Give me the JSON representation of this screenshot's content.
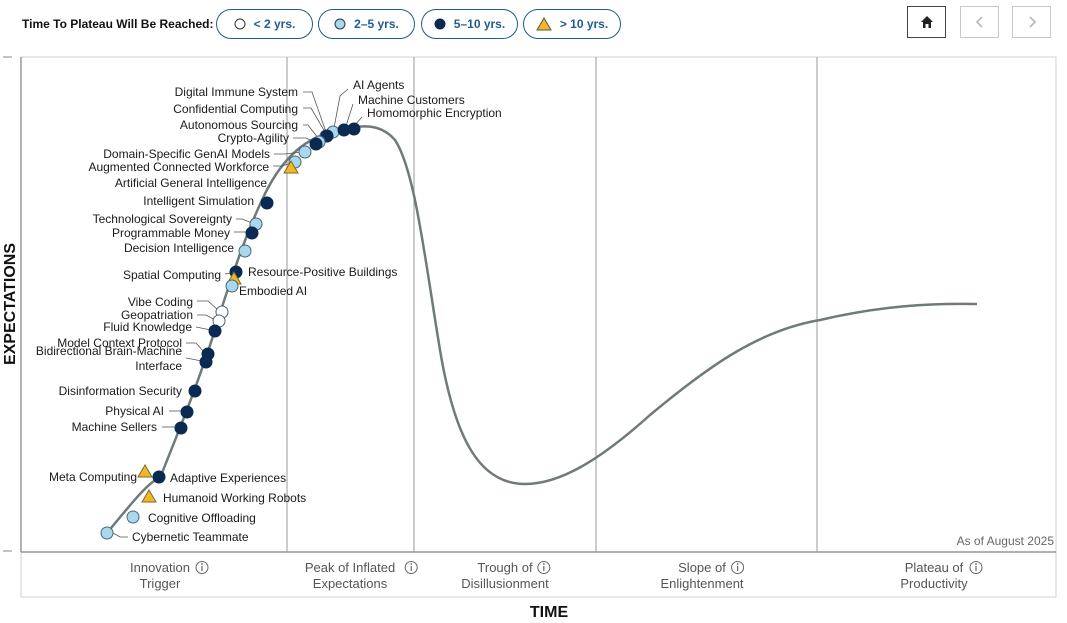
{
  "legend": {
    "title": "Time To Plateau Will Be Reached:",
    "items": [
      {
        "label": "< 2 yrs.",
        "marker": "circle-white"
      },
      {
        "label": "2–5 yrs.",
        "marker": "circle-light-blue"
      },
      {
        "label": "5–10 yrs.",
        "marker": "circle-navy"
      },
      {
        "label": "> 10 yrs.",
        "marker": "triangle-yellow"
      }
    ]
  },
  "nav": {
    "home_icon": "home-icon",
    "prev_icon": "chevron-left-icon",
    "next_icon": "chevron-right-icon"
  },
  "colors": {
    "under_2": "#ffffff",
    "two_to_five": "#a8d8ee",
    "five_to_ten": "#0b2a52",
    "over_10": "#f2b823",
    "curve": "#707a7a",
    "accent": "#1f5c8f"
  },
  "chart_data": {
    "type": "scatter",
    "xlabel": "TIME",
    "ylabel": "EXPECTATIONS",
    "as_of": "As of August 2025",
    "phases": [
      {
        "label": "Innovation Trigger",
        "lines": [
          "Innovation",
          "Trigger"
        ]
      },
      {
        "label": "Peak of Inflated Expectations",
        "lines": [
          "Peak of Inflated",
          "Expectations"
        ]
      },
      {
        "label": "Trough of Disillusionment",
        "lines": [
          "Trough of",
          "Disillusionment"
        ]
      },
      {
        "label": "Slope of Enlightenment",
        "lines": [
          "Slope of",
          "Enlightenment"
        ]
      },
      {
        "label": "Plateau of Productivity",
        "lines": [
          "Plateau of",
          "Productivity"
        ]
      }
    ],
    "categories": [
      "< 2 yrs.",
      "2–5 yrs.",
      "5–10 yrs.",
      "> 10 yrs."
    ],
    "points": [
      {
        "label": "AI Agents",
        "category": "2–5 yrs."
      },
      {
        "label": "Machine Customers",
        "category": "5–10 yrs."
      },
      {
        "label": "Homomorphic Encryption",
        "category": "5–10 yrs."
      },
      {
        "label": "Digital Immune System",
        "category": "2–5 yrs."
      },
      {
        "label": "Confidential Computing",
        "category": "5–10 yrs."
      },
      {
        "label": "Autonomous Sourcing",
        "category": "2–5 yrs."
      },
      {
        "label": "Crypto-Agility",
        "category": "5–10 yrs."
      },
      {
        "label": "Domain-Specific GenAI Models",
        "category": "2–5 yrs."
      },
      {
        "label": "Augmented Connected Workforce",
        "category": "2–5 yrs."
      },
      {
        "label": "Artificial General Intelligence",
        "category": "> 10 yrs."
      },
      {
        "label": "Intelligent Simulation",
        "category": "5–10 yrs."
      },
      {
        "label": "Technological Sovereignty",
        "category": "2–5 yrs."
      },
      {
        "label": "Programmable Money",
        "category": "5–10 yrs."
      },
      {
        "label": "Decision Intelligence",
        "category": "2–5 yrs."
      },
      {
        "label": "Spatial Computing",
        "category": "5–10 yrs."
      },
      {
        "label": "Resource-Positive Buildings",
        "category": "> 10 yrs."
      },
      {
        "label": "Embodied AI",
        "category": "2–5 yrs."
      },
      {
        "label": "Vibe Coding",
        "category": "< 2 yrs."
      },
      {
        "label": "Geopatriation",
        "category": "< 2 yrs."
      },
      {
        "label": "Fluid Knowledge",
        "category": "5–10 yrs."
      },
      {
        "label": "Model Context Protocol",
        "category": "5–10 yrs."
      },
      {
        "label": "Bidirectional Brain-Machine Interface",
        "lines": [
          "Bidirectional Brain-Machine",
          "Interface"
        ],
        "category": "5–10 yrs."
      },
      {
        "label": "Disinformation Security",
        "category": "5–10 yrs."
      },
      {
        "label": "Physical AI",
        "category": "5–10 yrs."
      },
      {
        "label": "Machine Sellers",
        "category": "5–10 yrs."
      },
      {
        "label": "Meta Computing",
        "category": "> 10 yrs."
      },
      {
        "label": "Adaptive Experiences",
        "category": "5–10 yrs."
      },
      {
        "label": "Humanoid Working Robots",
        "category": "> 10 yrs."
      },
      {
        "label": "Cognitive Offloading",
        "category": "2–5 yrs."
      },
      {
        "label": "Cybernetic Teammate",
        "category": "2–5 yrs."
      }
    ]
  }
}
